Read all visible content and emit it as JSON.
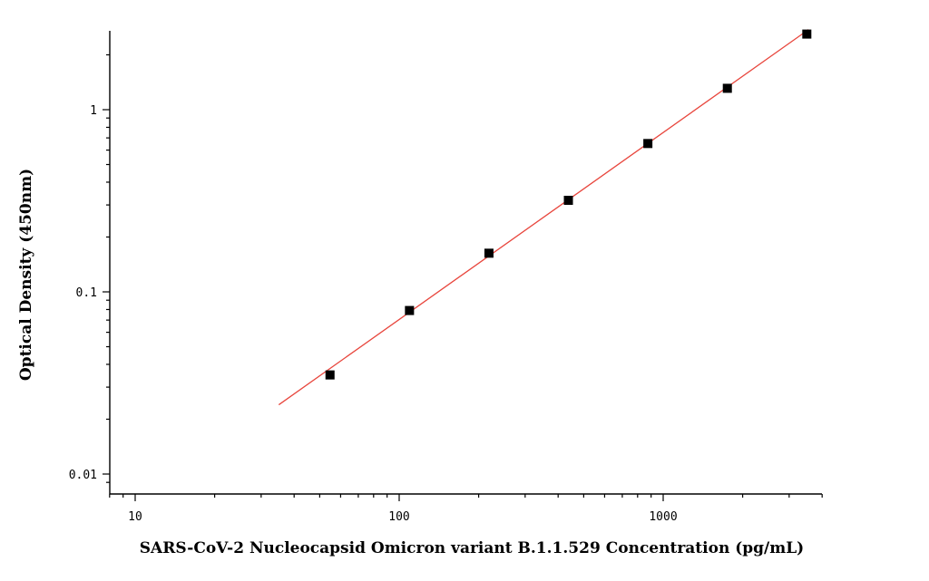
{
  "chart_data": {
    "type": "scatter",
    "title": "",
    "xlabel": "SARS-CoV-2 Nucleocapsid Omicron variant B.1.1.529 Concentration (pg/mL)",
    "ylabel": "Optical Density (450nm)",
    "xscale": "log",
    "yscale": "log",
    "xlim": [
      7.9,
      4100
    ],
    "ylim": [
      0.0085,
      2.7
    ],
    "grid": false,
    "x_ticks": [
      {
        "value": 10,
        "label": "10"
      },
      {
        "value": 100,
        "label": "100"
      },
      {
        "value": 1000,
        "label": "1000"
      }
    ],
    "y_ticks": [
      {
        "value": 0.01,
        "label": "0.01"
      },
      {
        "value": 0.1,
        "label": "0.1"
      },
      {
        "value": 1,
        "label": "1"
      }
    ],
    "series": [
      {
        "points": [
          {
            "x": 54.7,
            "y": 0.035
          },
          {
            "x": 109.4,
            "y": 0.079
          },
          {
            "x": 218.8,
            "y": 0.163
          },
          {
            "x": 437.5,
            "y": 0.318
          },
          {
            "x": 875,
            "y": 0.652
          },
          {
            "x": 1750,
            "y": 1.31
          },
          {
            "x": 3500,
            "y": 2.6
          }
        ],
        "marker_color": "#000000"
      }
    ],
    "fit_line": {
      "color": "#e8453c",
      "x_range": [
        35,
        3550
      ],
      "y_range": [
        0.024,
        2.75
      ]
    }
  }
}
